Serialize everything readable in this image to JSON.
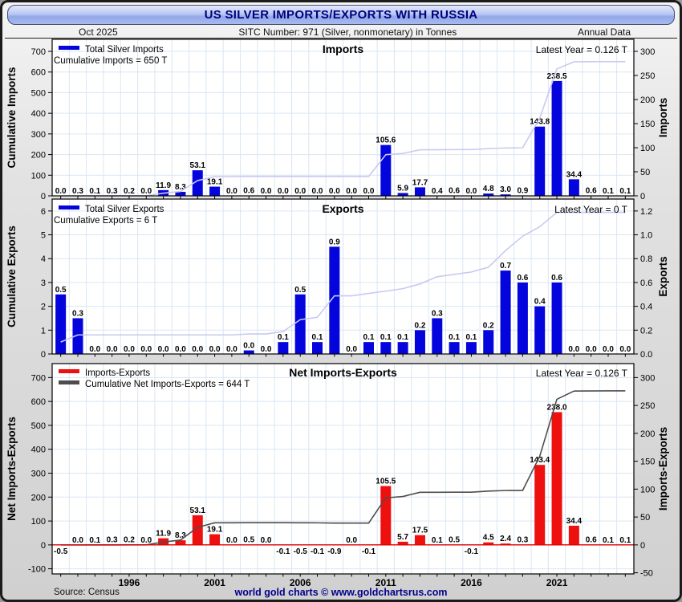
{
  "header": {
    "title": "US SILVER IMPORTS/EXPORTS WITH RUSSIA",
    "date": "Oct  2025",
    "sitc": "SITC Number: 971 (Silver, nonmonetary) in Tonnes",
    "annual": "Annual Data"
  },
  "footer": {
    "source": "Source: Census",
    "site": "world gold charts © www.goldchartsrus.com"
  },
  "colors": {
    "bar_blue": "#0404dd",
    "bar_red": "#ee0f0f",
    "line_light": "#c9c9f1",
    "line_dark": "#4d4d4d",
    "grid": "#d9e6f4",
    "zero_line_red": "#dd0000",
    "navy": "#00007d"
  },
  "chart_data": [
    {
      "type": "bar",
      "title": "Imports",
      "latest": "Latest Year = 0.126 T",
      "annotation": "Cumulative Imports = 650 T",
      "legend": [
        {
          "label": "Total Silver Imports",
          "color": "#0404dd"
        }
      ],
      "bar_color": "#0404dd",
      "line_color": "#c9c9f1",
      "zero_line": false,
      "left_axis": {
        "label": "Cumulative Imports",
        "min": 0,
        "max": 758.3,
        "ticks": [
          "0",
          "100",
          "200",
          "300",
          "400",
          "500",
          "600",
          "700"
        ]
      },
      "right_axis": {
        "label": "Imports",
        "min": 0,
        "max": 325,
        "ticks": [
          "0",
          "50",
          "100",
          "150",
          "200",
          "250",
          "300"
        ]
      },
      "years": [
        1992,
        1993,
        1994,
        1995,
        1996,
        1997,
        1998,
        1999,
        2000,
        2001,
        2002,
        2003,
        2004,
        2005,
        2006,
        2007,
        2008,
        2009,
        2010,
        2011,
        2012,
        2013,
        2014,
        2015,
        2016,
        2017,
        2018,
        2019,
        2020,
        2021,
        2022,
        2023,
        2024,
        2025
      ],
      "x_tick_labels": [
        "1996",
        "2001",
        "2006",
        "2011",
        "2016",
        "2021"
      ],
      "bars": {
        "name": "Total Silver Imports",
        "values": [
          0.0,
          0.3,
          0.1,
          0.3,
          0.2,
          0.0,
          11.9,
          8.3,
          53.1,
          19.1,
          0.0,
          0.6,
          0.0,
          0.0,
          0.0,
          0.0,
          0.0,
          0.0,
          0.0,
          105.6,
          5.9,
          17.7,
          0.4,
          0.6,
          0.0,
          4.8,
          3.0,
          0.9,
          143.8,
          238.5,
          34.4,
          0.6,
          0.1,
          0.126
        ]
      },
      "line": {
        "name": "Cumulative Imports",
        "values": [
          0.0,
          0.3,
          0.4,
          0.7,
          0.9,
          0.9,
          12.8,
          21.1,
          74.2,
          93.3,
          93.3,
          93.9,
          93.9,
          93.9,
          93.9,
          93.9,
          93.9,
          93.9,
          93.9,
          199.5,
          205.4,
          223.1,
          223.5,
          224.1,
          224.1,
          228.9,
          231.9,
          232.8,
          376.6,
          615.1,
          649.5,
          650.1,
          650.2,
          650.3
        ]
      }
    },
    {
      "type": "bar",
      "title": "Exports",
      "latest": "Latest Year = 0 T",
      "annotation": "Cumulative Exports = 6 T",
      "legend": [
        {
          "label": "Total Silver Exports",
          "color": "#0404dd"
        }
      ],
      "bar_color": "#0404dd",
      "line_color": "#c9c9f1",
      "zero_line": false,
      "left_axis": {
        "label": "Cumulative Exports",
        "min": 0,
        "max": 6.5,
        "ticks": [
          "0",
          "1",
          "2",
          "3",
          "4",
          "5",
          "6"
        ]
      },
      "right_axis": {
        "label": "Exports",
        "min": 0,
        "max": 1.3,
        "ticks": [
          "0.0",
          "0.2",
          "0.4",
          "0.6",
          "0.8",
          "1.0",
          "1.2"
        ]
      },
      "years": [
        1992,
        1993,
        1994,
        1995,
        1996,
        1997,
        1998,
        1999,
        2000,
        2001,
        2002,
        2003,
        2004,
        2005,
        2006,
        2007,
        2008,
        2009,
        2010,
        2011,
        2012,
        2013,
        2014,
        2015,
        2016,
        2017,
        2018,
        2019,
        2020,
        2021,
        2022,
        2023,
        2024,
        2025
      ],
      "x_tick_labels": [
        "1996",
        "2001",
        "2006",
        "2011",
        "2016",
        "2021"
      ],
      "bars": {
        "name": "Total Silver Exports",
        "values": [
          0.5,
          0.3,
          0.0,
          0.0,
          0.0,
          0.0,
          0.0,
          0.0,
          0.0,
          0.0,
          0.0,
          0.03,
          0.0,
          0.1,
          0.5,
          0.1,
          0.9,
          0.0,
          0.1,
          0.1,
          0.1,
          0.2,
          0.3,
          0.1,
          0.1,
          0.2,
          0.7,
          0.6,
          0.4,
          0.6,
          0.0,
          0.0,
          0.0,
          0.0
        ]
      },
      "line": {
        "name": "Cumulative Exports",
        "values": [
          0.5,
          0.8,
          0.8,
          0.8,
          0.8,
          0.8,
          0.8,
          0.8,
          0.8,
          0.8,
          0.8,
          0.84,
          0.84,
          0.94,
          1.44,
          1.54,
          2.44,
          2.44,
          2.54,
          2.64,
          2.74,
          2.94,
          3.24,
          3.34,
          3.44,
          3.64,
          4.34,
          4.94,
          5.34,
          5.94,
          5.94,
          5.94,
          5.94,
          5.94
        ]
      }
    },
    {
      "type": "bar",
      "title": "Net Imports-Exports",
      "latest": "Latest Year = 0.126 T",
      "annotation": null,
      "legend": [
        {
          "label": "Imports-Exports",
          "color": "#ee0f0f"
        },
        {
          "label": "Cumulative Net Imports-Exports = 644 T",
          "color": "#4d4d4d"
        }
      ],
      "bar_color": "#ee0f0f",
      "line_color": "#4d4d4d",
      "zero_line": true,
      "left_axis": {
        "label": "Net Imports-Exports",
        "min": -121.3,
        "max": 758.3,
        "ticks": [
          "-100",
          "0",
          "100",
          "200",
          "300",
          "400",
          "500",
          "600",
          "700"
        ]
      },
      "right_axis": {
        "label": "Imports-Exports",
        "min": -52,
        "max": 325,
        "ticks": [
          "-50",
          "0",
          "50",
          "100",
          "150",
          "200",
          "250",
          "300"
        ]
      },
      "years": [
        1992,
        1993,
        1994,
        1995,
        1996,
        1997,
        1998,
        1999,
        2000,
        2001,
        2002,
        2003,
        2004,
        2005,
        2006,
        2007,
        2008,
        2009,
        2010,
        2011,
        2012,
        2013,
        2014,
        2015,
        2016,
        2017,
        2018,
        2019,
        2020,
        2021,
        2022,
        2023,
        2024,
        2025
      ],
      "x_tick_labels": [
        "1996",
        "2001",
        "2006",
        "2011",
        "2016",
        "2021"
      ],
      "bars": {
        "name": "Imports-Exports",
        "values": [
          -0.5,
          0.0,
          0.1,
          0.3,
          0.2,
          0.0,
          11.9,
          8.3,
          53.1,
          19.1,
          0.0,
          0.5,
          0.0,
          -0.1,
          -0.5,
          -0.1,
          -0.9,
          0.0,
          -0.1,
          105.5,
          5.7,
          17.5,
          0.1,
          0.5,
          -0.1,
          4.5,
          2.4,
          0.3,
          143.4,
          238.0,
          34.4,
          0.6,
          0.1,
          0.126
        ]
      },
      "line": {
        "name": "Cumulative Net Imports-Exports",
        "values": [
          -0.5,
          -0.5,
          -0.4,
          -0.1,
          0.1,
          0.1,
          12.0,
          20.3,
          73.4,
          92.5,
          92.5,
          93.0,
          93.0,
          92.9,
          92.4,
          92.3,
          91.4,
          91.4,
          91.3,
          196.8,
          202.5,
          220.0,
          220.1,
          220.6,
          220.5,
          225.0,
          227.4,
          227.7,
          371.1,
          609.1,
          643.5,
          644.1,
          644.2,
          644.3
        ]
      }
    }
  ]
}
